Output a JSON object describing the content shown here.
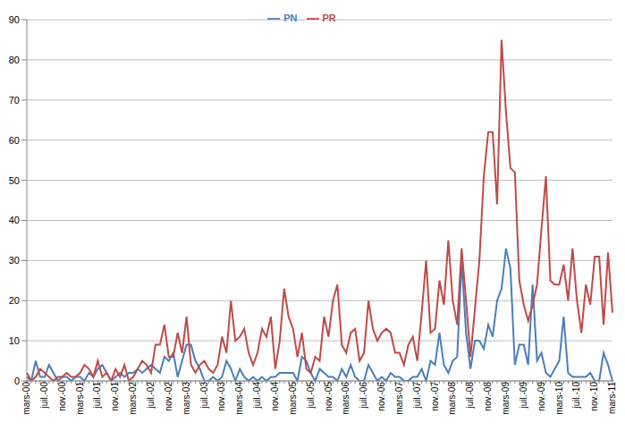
{
  "chart_data": {
    "type": "line",
    "categories": [
      "mars-00",
      null,
      null,
      null,
      "juil.-00",
      null,
      null,
      null,
      "nov.-00",
      null,
      null,
      null,
      "mars-01",
      null,
      null,
      null,
      "juil.-01",
      null,
      null,
      null,
      "nov.-01",
      null,
      null,
      null,
      "mars-02",
      null,
      null,
      null,
      "juil.-02",
      null,
      null,
      null,
      "nov.-02",
      null,
      null,
      null,
      "mars-03",
      null,
      null,
      null,
      "juil.-03",
      null,
      null,
      null,
      "nov.-03",
      null,
      null,
      null,
      "mars-04",
      null,
      null,
      null,
      "juil.-04",
      null,
      null,
      null,
      "nov.-04",
      null,
      null,
      null,
      "mars-05",
      null,
      null,
      null,
      "juil.-05",
      null,
      null,
      null,
      "nov.-05",
      null,
      null,
      null,
      "mars-06",
      null,
      null,
      null,
      "juil.-06",
      null,
      null,
      null,
      "nov.-06",
      null,
      null,
      null,
      "mars-07",
      null,
      null,
      null,
      "juil.-07",
      null,
      null,
      null,
      "nov.-07",
      null,
      null,
      null,
      "mars-08",
      null,
      null,
      null,
      "juil.-08",
      null,
      null,
      null,
      "nov.-08",
      null,
      null,
      null,
      "mars-09",
      null,
      null,
      null,
      "juil.-09",
      null,
      null,
      null,
      "nov.-09",
      null,
      null,
      null,
      "mars-10",
      null,
      null,
      null,
      "juil.-10",
      null,
      null,
      null,
      "nov.-10",
      null,
      null,
      null,
      "mars-11"
    ],
    "series": [
      {
        "name": "PN",
        "color": "#4a7ebb",
        "values": [
          1,
          0,
          5,
          1,
          1,
          4,
          2,
          0,
          1,
          1,
          0,
          1,
          1,
          0,
          2,
          1,
          3,
          4,
          2,
          0,
          1,
          2,
          1,
          2,
          2,
          3,
          2,
          3,
          4,
          3,
          2,
          6,
          5,
          7,
          1,
          5,
          9,
          9,
          5,
          3,
          0,
          0,
          1,
          0,
          1,
          5,
          3,
          0,
          3,
          1,
          0,
          1,
          0,
          1,
          0,
          1,
          1,
          2,
          2,
          2,
          2,
          0,
          6,
          5,
          2,
          0,
          3,
          2,
          1,
          1,
          0,
          3,
          1,
          4,
          1,
          0,
          0,
          4,
          2,
          0,
          1,
          0,
          2,
          1,
          1,
          0,
          0,
          1,
          1,
          3,
          0,
          5,
          4,
          12,
          4,
          2,
          5,
          6,
          30,
          12,
          3,
          10,
          10,
          8,
          14,
          11,
          20,
          23,
          33,
          28,
          4,
          9,
          9,
          4,
          24,
          5,
          7,
          2,
          1,
          3,
          5,
          16,
          2,
          1,
          1,
          1,
          1,
          2,
          0,
          0,
          7,
          4,
          0
        ]
      },
      {
        "name": "PR",
        "color": "#be4b48",
        "values": [
          2,
          0,
          1,
          3,
          2,
          1,
          0,
          1,
          1,
          2,
          1,
          1,
          2,
          4,
          3,
          1,
          5,
          1,
          2,
          0,
          3,
          1,
          4,
          0,
          1,
          3,
          5,
          4,
          2,
          9,
          9,
          14,
          6,
          6,
          12,
          7,
          16,
          4,
          2,
          4,
          5,
          3,
          2,
          4,
          11,
          7,
          20,
          10,
          11,
          13,
          7,
          4,
          7,
          13,
          11,
          16,
          3,
          10,
          23,
          16,
          13,
          6,
          12,
          3,
          2,
          6,
          5,
          16,
          11,
          20,
          24,
          9,
          7,
          12,
          13,
          5,
          7,
          20,
          13,
          10,
          12,
          13,
          12,
          7,
          7,
          4,
          9,
          11,
          5,
          17,
          30,
          12,
          13,
          25,
          19,
          35,
          20,
          14,
          33,
          20,
          6,
          18,
          30,
          51,
          62,
          62,
          44,
          85,
          67,
          53,
          52,
          25,
          19,
          15,
          19,
          24,
          38,
          51,
          25,
          24,
          24,
          29,
          20,
          33,
          20,
          12,
          24,
          19,
          31,
          31,
          14,
          32,
          17
        ]
      }
    ],
    "ylim": [
      0,
      90
    ],
    "yticks": [
      0,
      10,
      20,
      30,
      40,
      50,
      60,
      70,
      80,
      90
    ],
    "grid": true,
    "legend": "top"
  }
}
